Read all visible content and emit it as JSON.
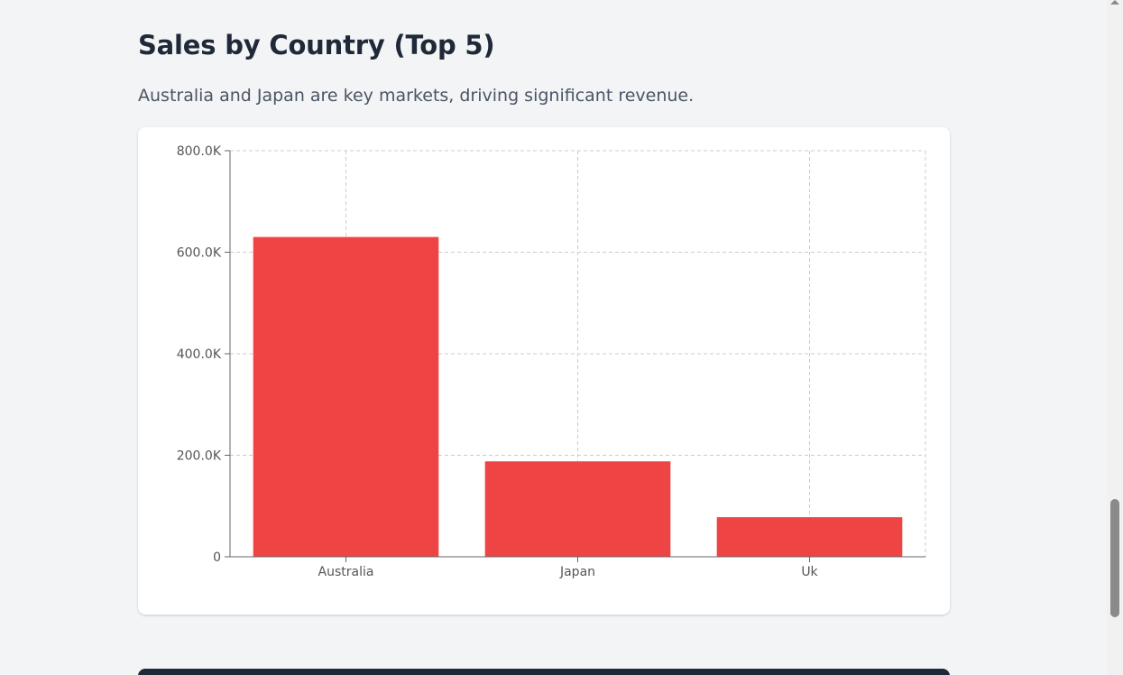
{
  "section": {
    "title": "Sales by Country (Top 5)",
    "description": "Australia and Japan are key markets, driving significant revenue."
  },
  "colors": {
    "bar": "#ef4444",
    "grid": "#cccccc",
    "axis": "#666666"
  },
  "chart_data": {
    "type": "bar",
    "categories": [
      "Australia",
      "Japan",
      "Uk"
    ],
    "values": [
      630000,
      188000,
      78000
    ],
    "ylim": [
      0,
      800000
    ],
    "yticks": [
      0,
      200000,
      400000,
      600000,
      800000
    ],
    "ytick_labels": [
      "0",
      "200.0K",
      "400.0K",
      "600.0K",
      "800.0K"
    ],
    "grid": true,
    "legend": "none"
  }
}
